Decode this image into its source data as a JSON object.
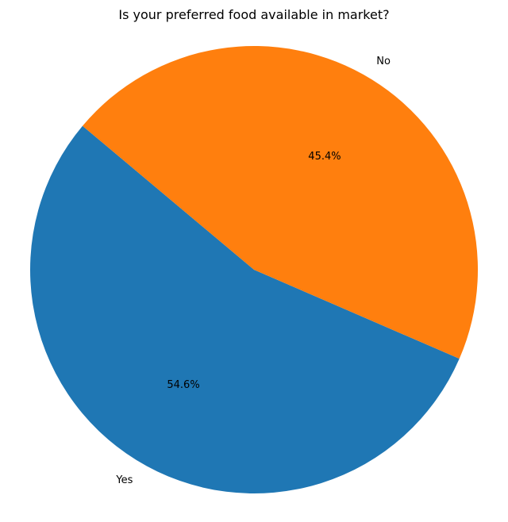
{
  "chart_data": {
    "type": "pie",
    "title": "Is your preferred food available in market?",
    "slices": [
      {
        "label": "Yes",
        "value": 54.6,
        "pct_label": "54.6%",
        "color": "#1f77b4"
      },
      {
        "label": "No",
        "value": 45.4,
        "pct_label": "45.4%",
        "color": "#ff7f0e"
      }
    ],
    "start_angle_deg": 140,
    "direction": "counterclockwise",
    "legend": "none"
  }
}
